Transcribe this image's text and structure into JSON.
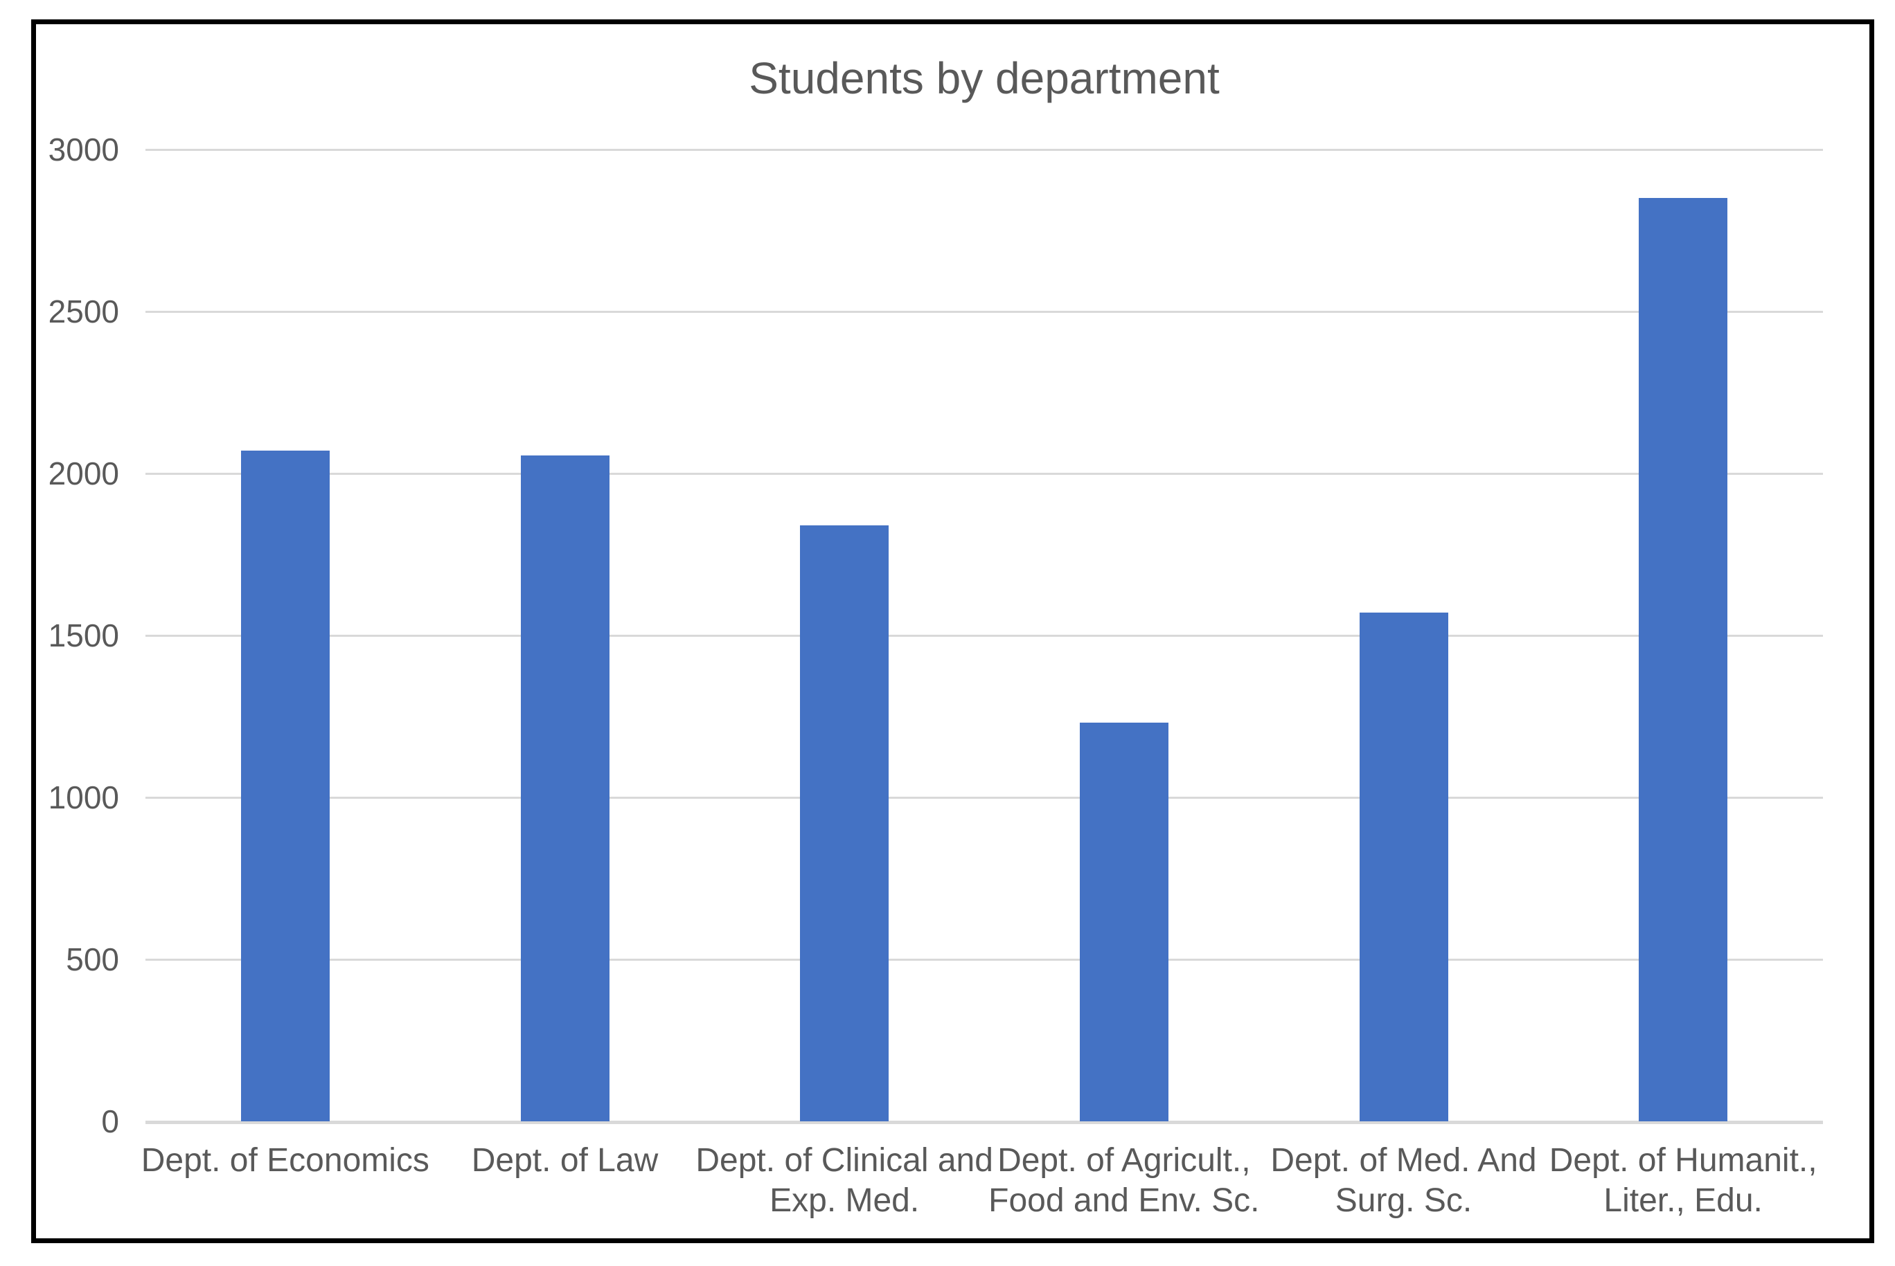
{
  "chart_data": {
    "type": "bar",
    "title": "Students by department",
    "categories": [
      "Dept. of Economics",
      "Dept. of Law",
      "Dept. of Clinical and Exp. Med.",
      "Dept. of Agricult., Food and Env. Sc.",
      "Dept. of Med. And Surg. Sc.",
      "Dept. of Humanit., Liter., Edu."
    ],
    "category_lines": [
      [
        "Dept. of Economics"
      ],
      [
        "Dept. of Law"
      ],
      [
        "Dept. of Clinical and",
        "Exp. Med."
      ],
      [
        "Dept. of Agricult.,",
        "Food and Env. Sc."
      ],
      [
        "Dept. of Med. And",
        "Surg. Sc."
      ],
      [
        "Dept. of Humanit.,",
        "Liter., Edu."
      ]
    ],
    "values": [
      2070,
      2055,
      1840,
      1230,
      1570,
      2850
    ],
    "xlabel": "",
    "ylabel": "",
    "ylim": [
      0,
      3000
    ],
    "ytick_interval": 500,
    "yticks": [
      "0",
      "500",
      "1000",
      "1500",
      "2000",
      "2500",
      "3000"
    ],
    "grid": "horizontal gridlines on",
    "legend": "none",
    "colors": {
      "bar": "#4472C4",
      "gridline": "#D9D9D9",
      "text": "#595959",
      "frame": "#000000",
      "background": "#FFFFFF"
    }
  }
}
